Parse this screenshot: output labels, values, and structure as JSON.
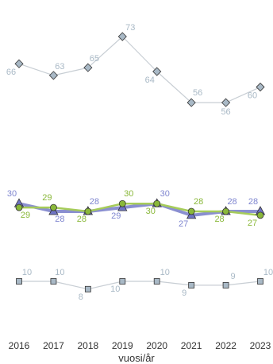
{
  "chart_data": {
    "type": "line",
    "title": "",
    "xlabel": "vuosi/år",
    "ylabel": "",
    "grid": false,
    "legend": "none",
    "x": [
      "2016",
      "2017",
      "2018",
      "2019",
      "2020",
      "2021",
      "2022",
      "2023"
    ],
    "series": [
      {
        "values": [
          66,
          63,
          65,
          73,
          64,
          56,
          56,
          60
        ],
        "marker": "diamond",
        "line_color": "#c8ced4",
        "marker_color": "#a9b9c6",
        "label_color": "#a9b9c6"
      },
      {
        "values": [
          30,
          28,
          28,
          29,
          30,
          27,
          28,
          28
        ],
        "marker": "triangle",
        "line_color": "#8a8fd0",
        "marker_color": "#6f74c4",
        "label_color": "#7f86d0"
      },
      {
        "values": [
          29,
          29,
          28,
          30,
          30,
          28,
          28,
          27
        ],
        "marker": "circle",
        "line_color": "#a6cc5a",
        "marker_color": "#8ab83a",
        "label_color": "#8ab83a"
      },
      {
        "values": [
          10,
          10,
          8,
          10,
          10,
          9,
          9,
          10
        ],
        "marker": "square",
        "line_color": "#c8ced4",
        "marker_color": "#a9b9c6",
        "label_color": "#a9b9c6"
      }
    ]
  }
}
